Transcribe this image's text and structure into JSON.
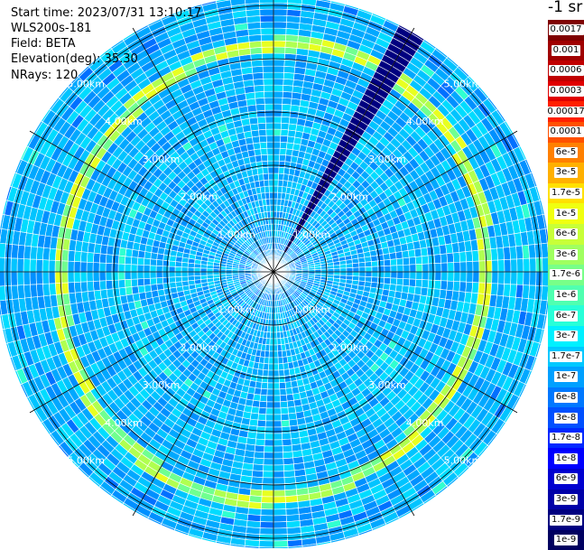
{
  "meta": {
    "start_time": "Start time: 2023/07/31 13:10:17",
    "device": "WLS200s-181",
    "field": "Field: BETA",
    "elevation": "Elevation(deg): 35.30",
    "nrays": "NRays: 120"
  },
  "colorbar": {
    "unit_label": "-1 sr",
    "entries": [
      {
        "label": "0.0017",
        "color": "#7f0000"
      },
      {
        "label": "0.001",
        "color": "#a00000"
      },
      {
        "label": "0.0006",
        "color": "#c00000"
      },
      {
        "label": "0.0003",
        "color": "#e00000"
      },
      {
        "label": "0.00017",
        "color": "#ff2000"
      },
      {
        "label": "0.0001",
        "color": "#ff5000"
      },
      {
        "label": "6e-5",
        "color": "#ff8000"
      },
      {
        "label": "3e-5",
        "color": "#ffb000"
      },
      {
        "label": "1.7e-5",
        "color": "#ffe000"
      },
      {
        "label": "1e-5",
        "color": "#f0ff10"
      },
      {
        "label": "6e-6",
        "color": "#c8ff38"
      },
      {
        "label": "3e-6",
        "color": "#a0ff60"
      },
      {
        "label": "1.7e-6",
        "color": "#78ff88"
      },
      {
        "label": "1e-6",
        "color": "#50ffb0"
      },
      {
        "label": "6e-7",
        "color": "#28ffd8"
      },
      {
        "label": "3e-7",
        "color": "#00f0ff"
      },
      {
        "label": "1.7e-7",
        "color": "#00c8ff"
      },
      {
        "label": "1e-7",
        "color": "#00a0ff"
      },
      {
        "label": "6e-8",
        "color": "#0078ff"
      },
      {
        "label": "3e-8",
        "color": "#0050ff"
      },
      {
        "label": "1.7e-8",
        "color": "#0028ff"
      },
      {
        "label": "1e-8",
        "color": "#0000ff"
      },
      {
        "label": "6e-9",
        "color": "#0000d0"
      },
      {
        "label": "3e-9",
        "color": "#0000a8"
      },
      {
        "label": "1.7e-9",
        "color": "#000080"
      },
      {
        "label": "1e-9",
        "color": "#000060"
      }
    ]
  },
  "chart_data": {
    "type": "heatmap",
    "projection": "polar-ppi",
    "nrays": 120,
    "range_rings_km": [
      1,
      2,
      3,
      4,
      5
    ],
    "ring_labels": [
      "1.00km",
      "2.00km",
      "3.00km",
      "4.00km",
      "5.00km"
    ],
    "max_range_km": 5.2,
    "scale": "log",
    "value_range": [
      1e-09,
      0.0017
    ],
    "background_level": "1e-7 to 1e-8",
    "features": [
      {
        "kind": "aerosol-ring",
        "range_km": [
          4.0,
          4.25
        ],
        "level": "1e-6 to 3e-6"
      },
      {
        "kind": "inner-ring",
        "range_km": [
          2.6,
          2.9
        ],
        "level": "1e-7 to 3e-7"
      },
      {
        "kind": "blocked-sector",
        "azimuth_deg": [
          28,
          33
        ],
        "level": "1e-9"
      }
    ],
    "grid": true
  }
}
